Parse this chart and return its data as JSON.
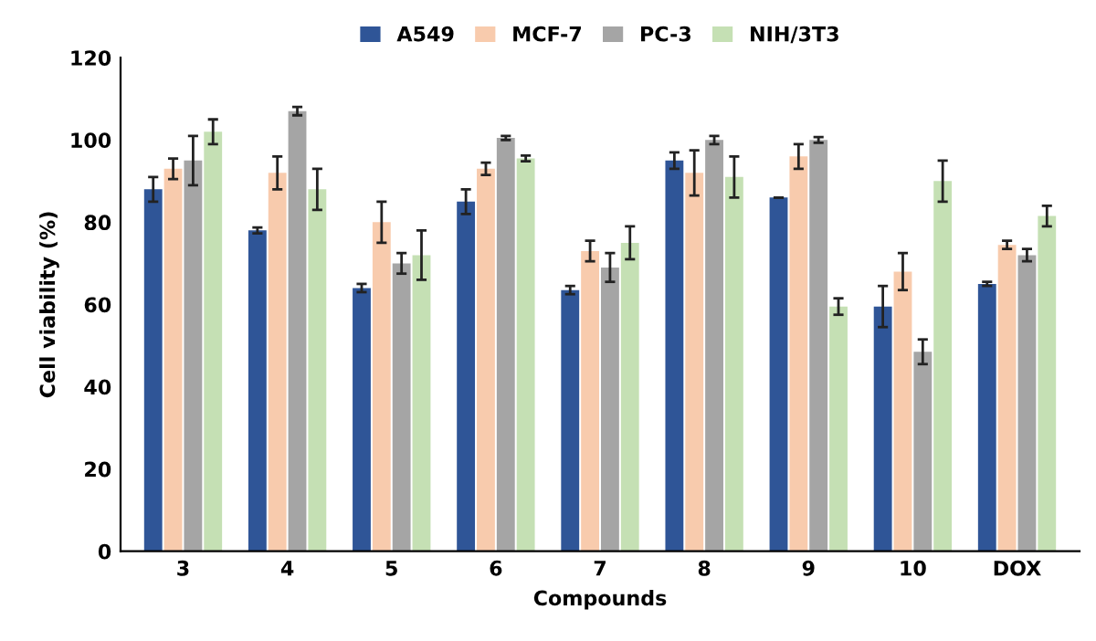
{
  "chart_data": {
    "type": "bar",
    "xlabel": "Compounds",
    "ylabel": "Cell viability (%)",
    "categories": [
      "3",
      "4",
      "5",
      "6",
      "7",
      "8",
      "9",
      "10",
      "DOX"
    ],
    "series": [
      {
        "name": "A549",
        "color": "#2f5597",
        "values": [
          88,
          78,
          64,
          85,
          63.5,
          95,
          86,
          59.5,
          65
        ],
        "errors": [
          3,
          0.7,
          1,
          3,
          1,
          2,
          0,
          5,
          0.5
        ]
      },
      {
        "name": "MCF-7",
        "color": "#f8cbad",
        "values": [
          93,
          92,
          80,
          93,
          73,
          92,
          96,
          68,
          74.5
        ],
        "errors": [
          2.5,
          4,
          5,
          1.5,
          2.5,
          5.5,
          3,
          4.5,
          1
        ]
      },
      {
        "name": "PC-3",
        "color": "#a5a5a5",
        "values": [
          95,
          107,
          70,
          100.5,
          69,
          100,
          100,
          48.5,
          72
        ],
        "errors": [
          6,
          1,
          2.5,
          0.5,
          3.5,
          1,
          0.7,
          3,
          1.5
        ]
      },
      {
        "name": "NIH/3T3",
        "color": "#c5e0b4",
        "values": [
          102,
          88,
          72,
          95.5,
          75,
          91,
          59.5,
          90,
          81.5
        ],
        "errors": [
          3,
          5,
          6,
          0.7,
          4,
          5,
          2,
          5,
          2.5
        ]
      }
    ],
    "ylim": [
      0,
      120
    ],
    "yticks": [
      0,
      20,
      40,
      60,
      80,
      100,
      120
    ],
    "grid": false,
    "legend": "top"
  }
}
